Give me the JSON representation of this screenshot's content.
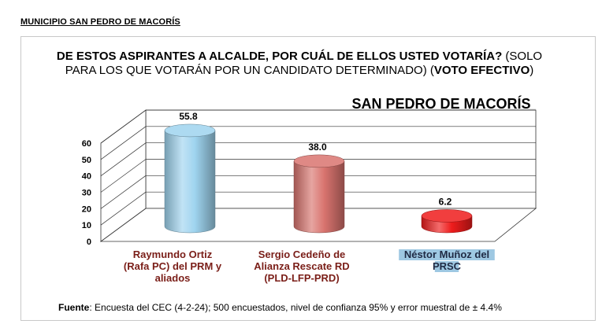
{
  "page": {
    "header": "MUNICIPIO SAN PEDRO DE MACORÍS"
  },
  "question": {
    "bold_part": "DE ESTOS ASPIRANTES A ALCALDE, POR CUÁL DE ELLOS USTED VOTARÍA?",
    "normal_part": " (SOLO PARA LOS QUE VOTARÁN POR UN CANDIDATO DETERMINADO) (",
    "bold_end": "VOTO EFECTIVO",
    "close": ")"
  },
  "subtitle": "SAN PEDRO DE MACORÍS",
  "source": {
    "label": "Fuente",
    "text": ": Encuesta del CEC (4-2-24); 500 encuestados, nivel de confianza 95% y error muestral de ± 4.4%"
  },
  "chart_data": {
    "type": "bar",
    "title": "",
    "categories": [
      "Raymundo Ortiz (Rafa PC) del PRM y aliados",
      "Sergio Cedeño de Alianza Rescate RD (PLD-LFP-PRD)",
      "Néstor Muñoz del PRSC"
    ],
    "category_lines": [
      [
        "Raymundo Ortiz",
        "(Rafa PC) del PRM y",
        "aliados"
      ],
      [
        "Sergio Cedeño de",
        "Alianza Rescate RD",
        "(PLD-LFP-PRD)"
      ],
      [
        "Néstor Muñoz del",
        "PRSC"
      ]
    ],
    "values": [
      55.8,
      38.0,
      6.2
    ],
    "value_labels": [
      "55.8",
      "38.0",
      "6.2"
    ],
    "colors": [
      "#9fd4ef",
      "#d9746f",
      "#ee1c1c"
    ],
    "ylim": [
      0,
      60
    ],
    "yticks": [
      "0",
      "10",
      "20",
      "30",
      "40",
      "50",
      "60"
    ],
    "grid": true,
    "legend": "none"
  }
}
